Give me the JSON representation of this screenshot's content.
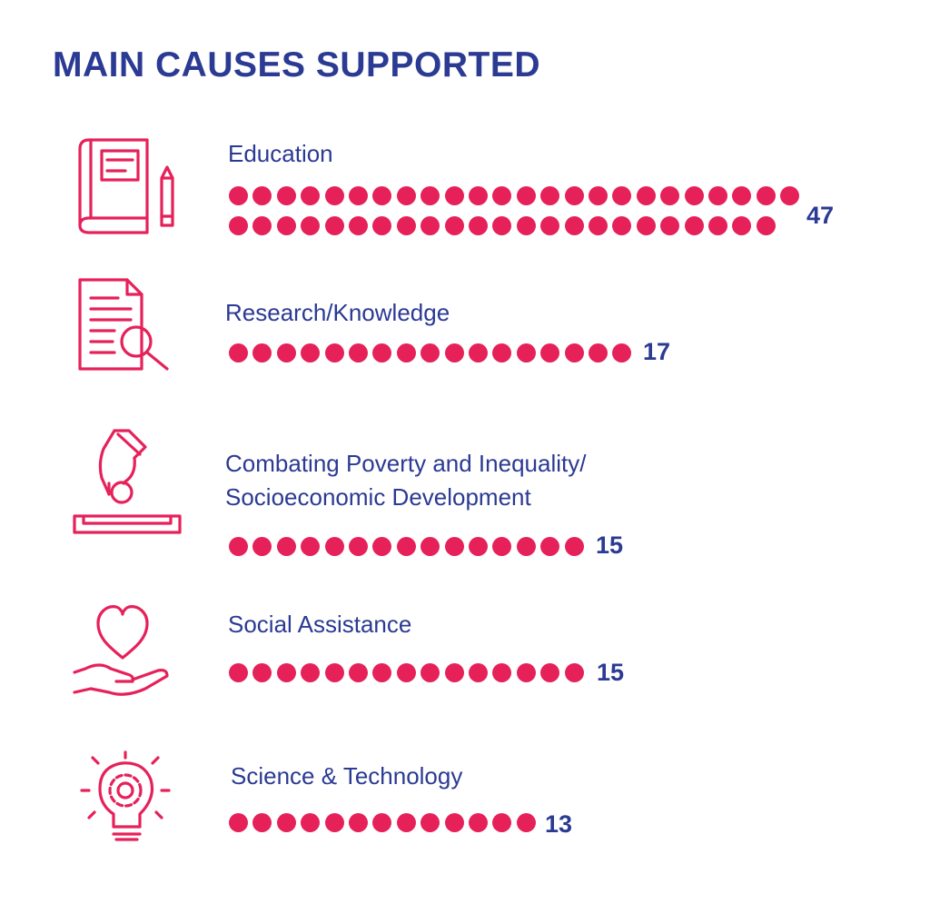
{
  "colors": {
    "title": "#2b3a93",
    "text": "#2b3a93",
    "accent": "#e6215a"
  },
  "title": "MAIN CAUSES SUPPORTED",
  "chart_data": {
    "type": "bar",
    "title": "MAIN CAUSES SUPPORTED",
    "categories": [
      "Education",
      "Research/Knowledge",
      "Combating Poverty and Inequality/ Socioeconomic Development",
      "Social Assistance",
      "Science & Technology"
    ],
    "values": [
      47,
      17,
      15,
      15,
      13
    ]
  },
  "causes": [
    {
      "label_lines": [
        "Education"
      ],
      "value": "47",
      "icon": "book-pencil-icon"
    },
    {
      "label_lines": [
        "Research/Knowledge"
      ],
      "value": "17",
      "icon": "document-magnifier-icon"
    },
    {
      "label_lines": [
        "Combating Poverty and Inequality/",
        "Socioeconomic Development"
      ],
      "value": "15",
      "icon": "hand-coin-icon"
    },
    {
      "label_lines": [
        "Social Assistance"
      ],
      "value": "15",
      "icon": "heart-hand-icon"
    },
    {
      "label_lines": [
        "Science & Technology"
      ],
      "value": "13",
      "icon": "lightbulb-gear-icon"
    }
  ]
}
